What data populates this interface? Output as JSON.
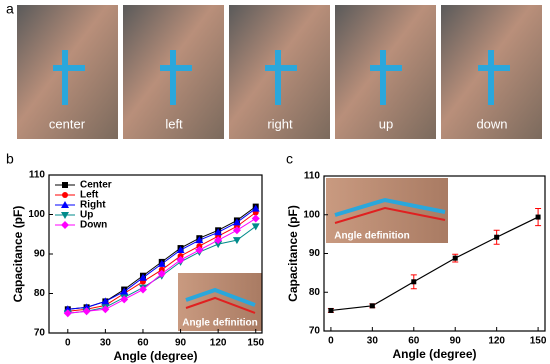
{
  "panel_labels": [
    "a",
    "b",
    "c"
  ],
  "photos": {
    "labels": [
      "center",
      "left",
      "right",
      "up",
      "down"
    ]
  },
  "chart_data": [
    {
      "type": "line",
      "xlabel": "Angle (degree)",
      "ylabel": "Capacitance (pF)",
      "x": [
        0,
        15,
        30,
        45,
        60,
        75,
        90,
        105,
        120,
        135,
        150
      ],
      "series": [
        {
          "name": "Center",
          "color": "#000000",
          "values": [
            76,
            76.5,
            78,
            81,
            84.5,
            88,
            91.5,
            94,
            96,
            98.5,
            102
          ]
        },
        {
          "name": "Left",
          "color": "#ff0000",
          "values": [
            75.5,
            76,
            77,
            80,
            83,
            86,
            89.5,
            92,
            94.5,
            97,
            100.5
          ]
        },
        {
          "name": "Right",
          "color": "#0000ff",
          "values": [
            76,
            76.5,
            78,
            80.5,
            84,
            87.5,
            91,
            93.5,
            95.5,
            98,
            101.5
          ]
        },
        {
          "name": "Up",
          "color": "#008b8b",
          "values": [
            75,
            75.5,
            76.5,
            79,
            81.5,
            84.5,
            88,
            90.5,
            92.5,
            93.5,
            97
          ]
        },
        {
          "name": "Down",
          "color": "#ff00ff",
          "values": [
            75,
            75.5,
            76,
            78.5,
            81,
            85,
            88.5,
            91,
            93.5,
            96,
            99
          ]
        }
      ],
      "xlim": [
        -15,
        155
      ],
      "ylim": [
        70,
        110
      ],
      "xticks": [
        0,
        30,
        60,
        90,
        120,
        150
      ],
      "yticks": [
        70,
        80,
        90,
        100,
        110
      ],
      "inset_label": "Angle definition"
    },
    {
      "type": "errorbar",
      "xlabel": "Angle (degree)",
      "ylabel": "Capacitance (pF)",
      "x": [
        0,
        30,
        60,
        90,
        120,
        150
      ],
      "values": [
        75.3,
        76.5,
        82.7,
        88.8,
        94.2,
        99.4
      ],
      "errors": [
        0.5,
        0.5,
        1.8,
        1,
        1.8,
        2.2
      ],
      "color": "#000000",
      "marker_color": "#ff0000",
      "xlim": [
        -5,
        155
      ],
      "ylim": [
        70,
        110
      ],
      "xticks": [
        0,
        30,
        60,
        90,
        120,
        150
      ],
      "yticks": [
        70,
        80,
        90,
        100,
        110
      ],
      "inset_label": "Angle definition"
    }
  ]
}
